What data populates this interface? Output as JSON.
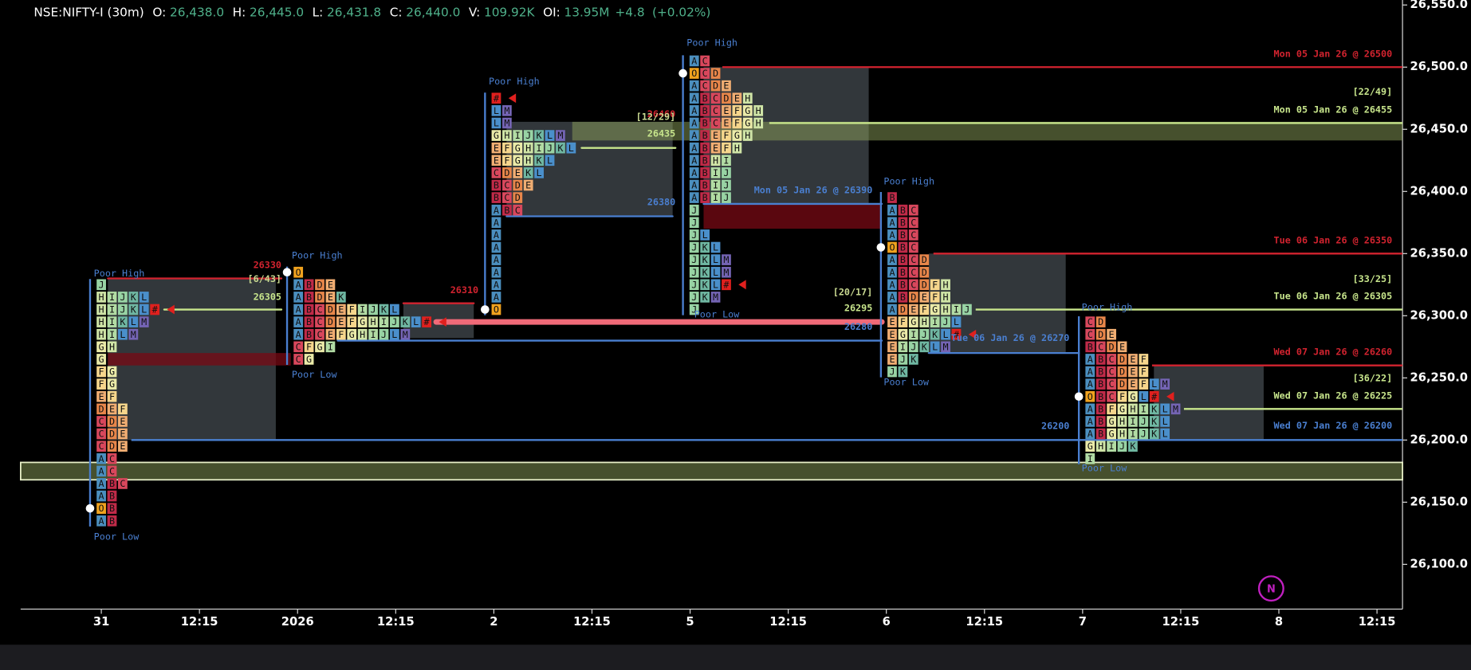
{
  "header": {
    "symbol": "NSE:NIFTY-I (30m)",
    "fields": [
      {
        "label": "O:",
        "value": "26,438.0"
      },
      {
        "label": "H:",
        "value": "26,445.0"
      },
      {
        "label": "L:",
        "value": "26,431.8"
      },
      {
        "label": "C:",
        "value": "26,440.0"
      },
      {
        "label": "V:",
        "value": "109.92K"
      },
      {
        "label": "OI:",
        "value": "13.95M"
      }
    ],
    "change": "+4.8",
    "change_pct": "(+0.02%)"
  },
  "badge": "N",
  "chart_data": {
    "type": "market_profile",
    "ylim": [
      26064,
      26554
    ],
    "yticks": [
      {
        "value": 26100,
        "label": "26,100.0"
      },
      {
        "value": 26150,
        "label": "26,150.0"
      },
      {
        "value": 26200,
        "label": "26,200.0"
      },
      {
        "value": 26250,
        "label": "26,250.0"
      },
      {
        "value": 26300,
        "label": "26,300.0"
      },
      {
        "value": 26350,
        "label": "26,350.0"
      },
      {
        "value": 26400,
        "label": "26,400.0"
      },
      {
        "value": 26450,
        "label": "26,450.0"
      },
      {
        "value": 26500,
        "label": "26,500.0"
      },
      {
        "value": 26550,
        "label": "26,550.0"
      }
    ],
    "categories": [
      "31",
      "12:15",
      "2026",
      "12:15",
      "2",
      "12:15",
      "5",
      "12:15",
      "6",
      "12:15",
      "7",
      "12:15",
      "8",
      "12:15"
    ],
    "letter_colors": {
      "A": "#4b8fbf",
      "B": "#c02a48",
      "C": "#d8475c",
      "D": "#e8864a",
      "E": "#f0ad72",
      "F": "#f6d68c",
      "G": "#eaeaa8",
      "H": "#cfe4a6",
      "I": "#b2dca4",
      "J": "#98d3a4",
      "K": "#6fb7a2",
      "L": "#4a8fcb",
      "M": "#7464b4",
      "O": "#f0a21e",
      "#": "#e0201e"
    },
    "profiles": [
      {
        "top": 26325,
        "rows": [
          "J",
          "HIJKL",
          "HIJKL#",
          "HIKLM",
          "HILM",
          "GH",
          "G",
          "FG",
          "FG",
          "EF",
          "DEF",
          "CDE",
          "CDE",
          "CDE",
          "AC",
          "AC",
          "ABC",
          "AB",
          "OB",
          "AB"
        ]
      },
      {
        "top": 26335,
        "rows": [
          "O",
          "ABDE",
          "ABDEK",
          "ABCDEFIJKL",
          "ABCDEFGHIJKL#",
          "ABCEFGHIJLM",
          "CFGI",
          "CG"
        ]
      },
      {
        "top": 26475,
        "rows": [
          "#",
          "LM",
          "LM",
          "GHIJKLM",
          "EFGHIJKL",
          "EFGHKL",
          "CDEKL",
          "BCDE",
          "BCD",
          "ABC",
          "A",
          "A",
          "A",
          "A",
          "A",
          "A",
          "A",
          "O"
        ]
      },
      {
        "top": 26505,
        "rows": [
          "AC",
          "OCD",
          "ACDE",
          "ABCDEH",
          "ABCEFGH",
          "ABCEFGH",
          "ABEFGH",
          "ABEFH",
          "ABHI",
          "ABIJ",
          "ABIJ",
          "ABIJ",
          "J",
          "J",
          "JL",
          "JKL",
          "JKLM",
          "JKLM",
          "JKL#",
          "JKM",
          "J"
        ]
      },
      {
        "top": 26395,
        "rows": [
          "B",
          "ABC",
          "ABC",
          "ABC",
          "OBC",
          "ABCD",
          "ABCD",
          "ABCDFH",
          "ABDEFH",
          "ADEFGHIJ",
          "EFGHIJL",
          "EGIJKL#",
          "EIJKLM",
          "EJK",
          "JK"
        ]
      },
      {
        "top": 26295,
        "rows": [
          "CD",
          "CDE",
          "BCDE",
          "ABCDEF",
          "ABCDEF",
          "ABCDEFLM",
          "OBCFGL#",
          "ABFGHIKLM",
          "ABGHIJKL",
          "ABGHIJKL",
          "GHIJK",
          "I"
        ]
      }
    ],
    "zones": [
      {
        "high": 26330,
        "low": 26200
      },
      {
        "high": 26310,
        "low": 26282
      },
      {
        "high": 26456,
        "low": 26380
      },
      {
        "high": 26500,
        "low": 26390
      },
      {
        "high": 26350,
        "low": 26270
      },
      {
        "high": 26260,
        "low": 26200
      }
    ],
    "red_bands": [
      {
        "high": 26270,
        "low": 26260
      },
      {
        "high": 26390,
        "low": 26370
      }
    ],
    "green_bands": [
      {
        "high": 26456,
        "low": 26441
      },
      {
        "high": 26182,
        "low": 26168
      }
    ],
    "lines": [
      {
        "price": 26330,
        "color": "#d2232f"
      },
      {
        "price": 26305,
        "color": "#c8e68c"
      },
      {
        "price": 26310,
        "color": "#d2232f"
      },
      {
        "price": 26295,
        "color": "#f06a78"
      },
      {
        "price": 26280,
        "color": "#4a7fd0"
      },
      {
        "price": 26380,
        "color": "#4a7fd0"
      },
      {
        "price": 26435,
        "color": "#c8e68c"
      },
      {
        "price": 26390,
        "color": "#4a7fd0"
      },
      {
        "price": 26270,
        "color": "#4a7fd0"
      }
    ],
    "levels": [
      {
        "label": "Mon 05 Jan 26 @ 26500",
        "price": 26500,
        "color": "#d2232f"
      },
      {
        "label": "Mon 05 Jan 26 @ 26455",
        "price": 26455,
        "color": "#c8e68c"
      },
      {
        "label": "Tue 06 Jan 26 @ 26350",
        "price": 26350,
        "color": "#d2232f"
      },
      {
        "label": "Tue 06 Jan 26 @ 26305",
        "price": 26305,
        "color": "#c8e68c"
      },
      {
        "label": "Wed 07 Jan 26 @ 26260",
        "price": 26260,
        "color": "#d2232f"
      },
      {
        "label": "Wed 07 Jan 26 @ 26225",
        "price": 26225,
        "color": "#c8e68c"
      },
      {
        "label": "Wed 07 Jan 26 @ 26200",
        "price": 26200,
        "color": "#4a7fd0"
      }
    ],
    "annotations": [
      {
        "text": "Poor High",
        "color": "#4a7fd0"
      },
      {
        "text": "Poor Low",
        "color": "#4a7fd0"
      },
      {
        "text": "Poor High",
        "color": "#4a7fd0"
      },
      {
        "text": "Poor Low",
        "color": "#4a7fd0"
      },
      {
        "text": "Poor High",
        "color": "#4a7fd0"
      },
      {
        "text": "Poor High",
        "color": "#4a7fd0"
      },
      {
        "text": "Poor Low",
        "color": "#4a7fd0"
      },
      {
        "text": "Poor High",
        "color": "#4a7fd0"
      },
      {
        "text": "Poor Low",
        "color": "#4a7fd0"
      },
      {
        "text": "Poor High",
        "color": "#4a7fd0"
      },
      {
        "text": "Poor Low",
        "color": "#4a7fd0"
      },
      {
        "text": "26330",
        "color": "#d2232f"
      },
      {
        "text": "[6/43]",
        "color": "#c8d890"
      },
      {
        "text": "26305",
        "color": "#c8e68c"
      },
      {
        "text": "26310",
        "color": "#d2232f"
      },
      {
        "text": "26460",
        "color": "#d2232f"
      },
      {
        "text": "[12/29]",
        "color": "#c8d890"
      },
      {
        "text": "26435",
        "color": "#c8e68c"
      },
      {
        "text": "26380",
        "color": "#4a7fd0"
      },
      {
        "text": "Mon 05 Jan 26 @ 26390",
        "color": "#4a7fd0"
      },
      {
        "text": "[20/17]",
        "color": "#c8d890"
      },
      {
        "text": "26295",
        "color": "#c8e68c"
      },
      {
        "text": "26280",
        "color": "#4a7fd0"
      },
      {
        "text": "Tue 06 Jan 26 @ 26270",
        "color": "#4a7fd0"
      },
      {
        "text": "26200",
        "color": "#4a7fd0"
      },
      {
        "text": "[22/49]",
        "color": "#c8e68c"
      },
      {
        "text": "[33/25]",
        "color": "#c8e68c"
      },
      {
        "text": "[36/22]",
        "color": "#c8e68c"
      }
    ]
  }
}
